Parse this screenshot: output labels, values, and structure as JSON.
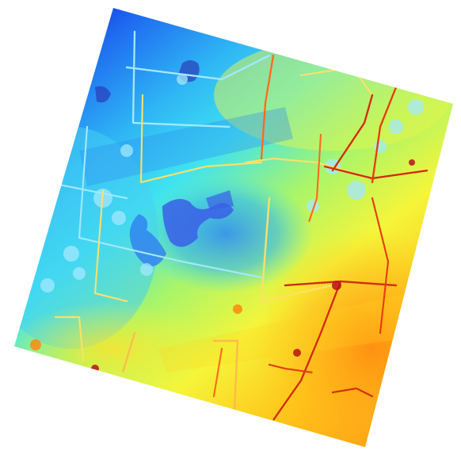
{
  "map": {
    "type": "elevation-raster",
    "colormap": "jet",
    "colormap_stops": [
      "#0a1fd8",
      "#1f6cf0",
      "#2fb6f5",
      "#3fe3f0",
      "#a8f56a",
      "#f5f53a",
      "#ffc81a",
      "#ff8a10",
      "#e83a10",
      "#b8121a"
    ],
    "background_color": "#ffffff",
    "road_colors": [
      "#ffe066",
      "#ffb84d",
      "#ff6a1a",
      "#d42a10",
      "#a4e8ff"
    ],
    "lowland_color": "#3a5fe6",
    "deep_low_color": "#2a3cb8",
    "rotation_note_free": true
  }
}
